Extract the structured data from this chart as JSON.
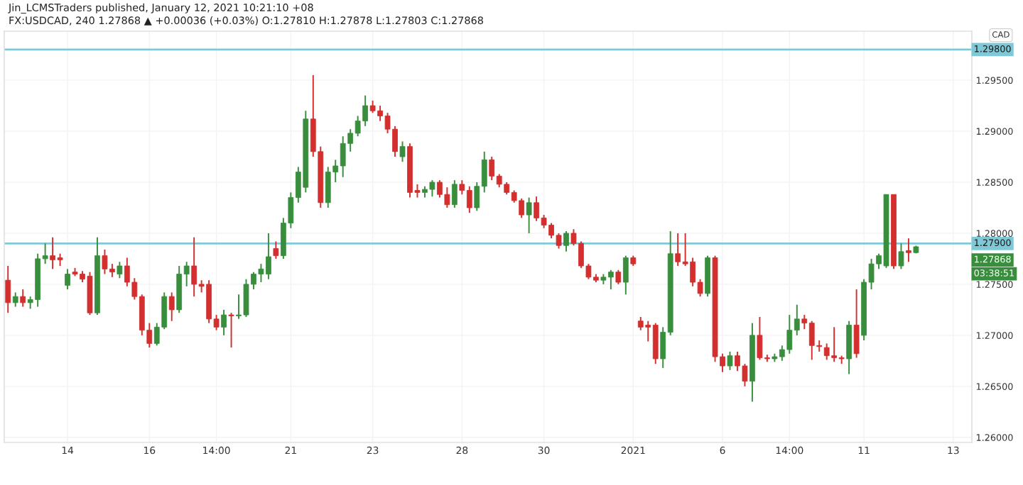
{
  "chart_data": {
    "type": "candlestick",
    "title": "Jin_LCMSTraders published, January 12, 2021 10:21:10 +08",
    "subtitle": "FX:USDCAD, 240 1.27868 ▲ +0.00036 (+0.03%) O:1.27810 H:1.27878 L:1.27803 C:1.27868",
    "categories": [
      null,
      null,
      null,
      null,
      null,
      null,
      null,
      null,
      "14",
      null,
      null,
      null,
      null,
      null,
      null,
      null,
      null,
      null,
      null,
      "16",
      null,
      null,
      null,
      null,
      null,
      null,
      null,
      null,
      "14:00",
      null,
      null,
      null,
      null,
      null,
      null,
      null,
      null,
      null,
      "21",
      null,
      null,
      null,
      null,
      null,
      null,
      null,
      null,
      null,
      null,
      "23",
      null,
      null,
      null,
      null,
      null,
      null,
      null,
      null,
      null,
      null,
      null,
      "28",
      null,
      null,
      null,
      null,
      null,
      null,
      null,
      null,
      null,
      null,
      "30",
      null,
      null,
      null,
      null,
      null,
      null,
      null,
      null,
      null,
      null,
      null,
      "2021",
      null,
      null,
      null,
      null,
      null,
      null,
      null,
      null,
      null,
      null,
      null,
      "6",
      null,
      null,
      null,
      null,
      null,
      null,
      null,
      null,
      "14:00",
      null,
      null,
      null,
      null,
      null,
      null,
      null,
      null,
      null,
      "11",
      null,
      null,
      null,
      null,
      null,
      null,
      null,
      null,
      null,
      null,
      null,
      "13",
      null,
      null
    ],
    "ohlc": [
      [
        1.2754,
        1.2768,
        1.2722,
        1.2732
      ],
      [
        1.2732,
        1.2742,
        1.2728,
        1.2738
      ],
      [
        1.2738,
        1.2745,
        1.2728,
        1.2732
      ],
      [
        1.2732,
        1.2738,
        1.2726,
        1.2735
      ],
      [
        1.2735,
        1.278,
        1.2728,
        1.2775
      ],
      [
        1.2775,
        1.279,
        1.277,
        1.2778
      ],
      [
        1.2778,
        1.2796,
        1.2765,
        1.2774
      ],
      [
        1.2776,
        1.278,
        1.2768,
        1.2774
      ],
      [
        1.2749,
        1.2765,
        1.2745,
        1.276
      ],
      [
        1.2762,
        1.2766,
        1.2758,
        1.276
      ],
      [
        1.276,
        1.2763,
        1.2752,
        1.2755
      ],
      [
        1.2758,
        1.2762,
        1.272,
        1.2722
      ],
      [
        1.2722,
        1.2796,
        1.272,
        1.2778
      ],
      [
        1.2778,
        1.2784,
        1.276,
        1.2765
      ],
      [
        1.2765,
        1.277,
        1.2757,
        1.2762
      ],
      [
        1.276,
        1.2772,
        1.2756,
        1.2768
      ],
      [
        1.2768,
        1.2776,
        1.2748,
        1.2752
      ],
      [
        1.2752,
        1.2756,
        1.2735,
        1.2738
      ],
      [
        1.2738,
        1.274,
        1.27,
        1.2705
      ],
      [
        1.2705,
        1.2712,
        1.2688,
        1.2692
      ],
      [
        1.2692,
        1.2712,
        1.269,
        1.2708
      ],
      [
        1.2708,
        1.2742,
        1.2706,
        1.2738
      ],
      [
        1.2738,
        1.2742,
        1.2714,
        1.2725
      ],
      [
        1.2725,
        1.2768,
        1.2722,
        1.276
      ],
      [
        1.276,
        1.2772,
        1.2748,
        1.2768
      ],
      [
        1.2768,
        1.2796,
        1.2738,
        1.275
      ],
      [
        1.275,
        1.2754,
        1.2742,
        1.2748
      ],
      [
        1.275,
        1.2754,
        1.2712,
        1.2716
      ],
      [
        1.2716,
        1.272,
        1.2705,
        1.2708
      ],
      [
        1.2708,
        1.2725,
        1.27,
        1.272
      ],
      [
        1.272,
        1.2722,
        1.2688,
        1.2719
      ],
      [
        1.2719,
        1.274,
        1.2716,
        1.272
      ],
      [
        1.272,
        1.2755,
        1.2718,
        1.275
      ],
      [
        1.275,
        1.2762,
        1.2745,
        1.276
      ],
      [
        1.276,
        1.277,
        1.2752,
        1.2765
      ],
      [
        1.276,
        1.28,
        1.2755,
        1.2777
      ],
      [
        1.2785,
        1.2792,
        1.2775,
        1.2778
      ],
      [
        1.2778,
        1.2815,
        1.2775,
        1.281
      ],
      [
        1.281,
        1.284,
        1.2805,
        1.2835
      ],
      [
        1.2835,
        1.2865,
        1.283,
        1.286
      ],
      [
        1.2845,
        1.292,
        1.284,
        1.2912
      ],
      [
        1.2912,
        1.2955,
        1.2875,
        1.288
      ],
      [
        1.288,
        1.2885,
        1.2825,
        1.283
      ],
      [
        1.283,
        1.2865,
        1.2825,
        1.286
      ],
      [
        1.286,
        1.2872,
        1.285,
        1.2866
      ],
      [
        1.2866,
        1.2895,
        1.2855,
        1.2888
      ],
      [
        1.2888,
        1.2902,
        1.288,
        1.2898
      ],
      [
        1.2898,
        1.2915,
        1.2895,
        1.291
      ],
      [
        1.291,
        1.2935,
        1.2905,
        1.2925
      ],
      [
        1.2925,
        1.293,
        1.2918,
        1.292
      ],
      [
        1.292,
        1.2925,
        1.291,
        1.2915
      ],
      [
        1.2915,
        1.2918,
        1.2898,
        1.2902
      ],
      [
        1.2902,
        1.2905,
        1.2875,
        1.288
      ],
      [
        1.2875,
        1.289,
        1.287,
        1.2885
      ],
      [
        1.2885,
        1.2888,
        1.2835,
        1.284
      ],
      [
        1.2842,
        1.2848,
        1.2835,
        1.284
      ],
      [
        1.284,
        1.2846,
        1.2835,
        1.2843
      ],
      [
        1.2843,
        1.2852,
        1.2836,
        1.285
      ],
      [
        1.285,
        1.2852,
        1.2835,
        1.2838
      ],
      [
        1.2838,
        1.2845,
        1.2825,
        1.2828
      ],
      [
        1.2828,
        1.2852,
        1.2825,
        1.2848
      ],
      [
        1.2848,
        1.2852,
        1.2838,
        1.2842
      ],
      [
        1.2842,
        1.2846,
        1.282,
        1.2825
      ],
      [
        1.2825,
        1.285,
        1.2822,
        1.2846
      ],
      [
        1.2846,
        1.288,
        1.284,
        1.2872
      ],
      [
        1.2872,
        1.2875,
        1.2852,
        1.2856
      ],
      [
        1.2856,
        1.2858,
        1.2845,
        1.2848
      ],
      [
        1.2848,
        1.285,
        1.2838,
        1.284
      ],
      [
        1.284,
        1.2842,
        1.283,
        1.2832
      ],
      [
        1.2832,
        1.2834,
        1.2815,
        1.2818
      ],
      [
        1.2818,
        1.2835,
        1.28,
        1.283
      ],
      [
        1.283,
        1.2836,
        1.2812,
        1.2815
      ],
      [
        1.2815,
        1.2818,
        1.2805,
        1.2808
      ],
      [
        1.2808,
        1.281,
        1.2795,
        1.2798
      ],
      [
        1.2798,
        1.28,
        1.2785,
        1.2788
      ],
      [
        1.2788,
        1.2802,
        1.2782,
        1.28
      ],
      [
        1.28,
        1.2804,
        1.2788,
        1.279
      ],
      [
        1.279,
        1.2792,
        1.2766,
        1.2768
      ],
      [
        1.2768,
        1.277,
        1.2755,
        1.2757
      ],
      [
        1.2757,
        1.276,
        1.2752,
        1.2754
      ],
      [
        1.2754,
        1.276,
        1.275,
        1.2757
      ],
      [
        1.2757,
        1.2764,
        1.2745,
        1.2762
      ],
      [
        1.2762,
        1.2764,
        1.275,
        1.2752
      ],
      [
        1.2752,
        1.2778,
        1.274,
        1.2776
      ],
      [
        1.2776,
        1.2778,
        1.2768,
        1.277
      ],
      [
        1.2714,
        1.2718,
        1.2705,
        1.2708
      ],
      [
        1.271,
        1.2714,
        1.2694,
        1.2708
      ],
      [
        1.271,
        1.2712,
        1.2672,
        1.2677
      ],
      [
        1.2677,
        1.2708,
        1.2668,
        1.2703
      ],
      [
        1.2703,
        1.2802,
        1.27,
        1.278
      ],
      [
        1.278,
        1.28,
        1.2768,
        1.2772
      ],
      [
        1.2772,
        1.28,
        1.2768,
        1.277
      ],
      [
        1.2772,
        1.2776,
        1.2748,
        1.2752
      ],
      [
        1.2752,
        1.2755,
        1.2738,
        1.2741
      ],
      [
        1.2741,
        1.2778,
        1.2738,
        1.2776
      ],
      [
        1.2776,
        1.2778,
        1.2674,
        1.2679
      ],
      [
        1.2679,
        1.2682,
        1.2664,
        1.267
      ],
      [
        1.267,
        1.2684,
        1.2666,
        1.268
      ],
      [
        1.268,
        1.2684,
        1.2665,
        1.267
      ],
      [
        1.267,
        1.2672,
        1.265,
        1.2655
      ],
      [
        1.2655,
        1.2712,
        1.2635,
        1.27
      ],
      [
        1.27,
        1.2718,
        1.2676,
        1.2678
      ],
      [
        1.2678,
        1.2681,
        1.2674,
        1.2677
      ],
      [
        1.2677,
        1.2682,
        1.2674,
        1.2679
      ],
      [
        1.2679,
        1.269,
        1.2675,
        1.2686
      ],
      [
        1.2686,
        1.272,
        1.2682,
        1.2705
      ],
      [
        1.2705,
        1.273,
        1.27,
        1.2716
      ],
      [
        1.2716,
        1.272,
        1.2706,
        1.2712
      ],
      [
        1.2712,
        1.2714,
        1.2676,
        1.269
      ],
      [
        1.269,
        1.2695,
        1.2684,
        1.2689
      ],
      [
        1.2688,
        1.2692,
        1.2676,
        1.268
      ],
      [
        1.268,
        1.2708,
        1.2674,
        1.2678
      ],
      [
        1.2678,
        1.268,
        1.2672,
        1.2677
      ],
      [
        1.2677,
        1.2714,
        1.2662,
        1.271
      ],
      [
        1.271,
        1.2745,
        1.2678,
        1.2682
      ],
      [
        1.27,
        1.2755,
        1.2695,
        1.2752
      ],
      [
        1.2752,
        1.2775,
        1.2745,
        1.277
      ],
      [
        1.277,
        1.278,
        1.2765,
        1.2778
      ],
      [
        1.2768,
        1.2838,
        1.2766,
        1.2838
      ],
      [
        1.2838,
        1.2838,
        1.2765,
        1.2768
      ],
      [
        1.2768,
        1.279,
        1.2765,
        1.2782
      ],
      [
        1.2783,
        1.2795,
        1.2772,
        1.2781
      ],
      [
        1.2781,
        1.27878,
        1.27803,
        1.27868
      ],
      null,
      null,
      null,
      null,
      null,
      null,
      null
    ],
    "colors": [
      "#d32f2f",
      "#388e3c",
      "#d32f2f",
      "#388e3c",
      "#388e3c",
      "#388e3c",
      "#d32f2f",
      "#d32f2f",
      "#388e3c",
      "#d32f2f",
      "#d32f2f",
      "#d32f2f",
      "#388e3c",
      "#d32f2f",
      "#d32f2f",
      "#388e3c",
      "#d32f2f",
      "#d32f2f",
      "#d32f2f",
      "#d32f2f",
      "#388e3c",
      "#388e3c",
      "#d32f2f",
      "#388e3c",
      "#388e3c",
      "#d32f2f",
      "#d32f2f",
      "#d32f2f",
      "#d32f2f",
      "#388e3c",
      "#d32f2f",
      "#388e3c",
      "#388e3c",
      "#388e3c",
      "#388e3c",
      "#388e3c",
      "#d32f2f",
      "#388e3c",
      "#388e3c",
      "#388e3c",
      "#388e3c",
      "#d32f2f",
      "#d32f2f",
      "#388e3c",
      "#388e3c",
      "#388e3c",
      "#388e3c",
      "#388e3c",
      "#388e3c",
      "#d32f2f",
      "#d32f2f",
      "#d32f2f",
      "#d32f2f",
      "#388e3c",
      "#d32f2f",
      "#d32f2f",
      "#388e3c",
      "#388e3c",
      "#d32f2f",
      "#d32f2f",
      "#388e3c",
      "#d32f2f",
      "#d32f2f",
      "#388e3c",
      "#388e3c",
      "#d32f2f",
      "#d32f2f",
      "#d32f2f",
      "#d32f2f",
      "#d32f2f",
      "#388e3c",
      "#d32f2f",
      "#d32f2f",
      "#d32f2f",
      "#d32f2f",
      "#388e3c",
      "#d32f2f",
      "#d32f2f",
      "#d32f2f",
      "#d32f2f",
      "#388e3c",
      "#388e3c",
      "#d32f2f",
      "#388e3c",
      "#d32f2f",
      "#d32f2f",
      "#d32f2f",
      "#d32f2f",
      "#388e3c",
      "#388e3c",
      "#d32f2f",
      "#d32f2f",
      "#d32f2f",
      "#d32f2f",
      "#388e3c",
      "#d32f2f",
      "#d32f2f",
      "#388e3c",
      "#d32f2f",
      "#d32f2f",
      "#388e3c",
      "#d32f2f",
      "#d32f2f",
      "#388e3c",
      "#388e3c",
      "#388e3c",
      "#388e3c",
      "#d32f2f",
      "#d32f2f",
      "#d32f2f",
      "#d32f2f",
      "#d32f2f",
      "#d32f2f",
      "#388e3c",
      "#d32f2f",
      "#388e3c",
      "#388e3c",
      "#388e3c",
      "#388e3c",
      "#d32f2f",
      "#388e3c",
      "#d32f2f",
      "#388e3c",
      null,
      null,
      null,
      null,
      null,
      null,
      null
    ],
    "ylim": [
      1.2595,
      1.2998
    ],
    "yticks": [
      {
        "value": 1.26,
        "label": "1.26000"
      },
      {
        "value": 1.265,
        "label": "1.26500"
      },
      {
        "value": 1.27,
        "label": "1.27000"
      },
      {
        "value": 1.275,
        "label": "1.27500"
      },
      {
        "value": 1.28,
        "label": "1.28000"
      },
      {
        "value": 1.285,
        "label": "1.28500"
      },
      {
        "value": 1.29,
        "label": "1.29000"
      },
      {
        "value": 1.295,
        "label": "1.29500"
      }
    ],
    "grid": true,
    "ref_lines": [
      {
        "axis": "y",
        "value": 1.298,
        "label": "1.29800",
        "color": "#7ec8d8"
      },
      {
        "axis": "y",
        "value": 1.279,
        "label": "1.27900",
        "color": "#7ec8d8"
      }
    ],
    "annotations": [
      "CAD",
      "1.27868",
      "03:38:51"
    ]
  }
}
